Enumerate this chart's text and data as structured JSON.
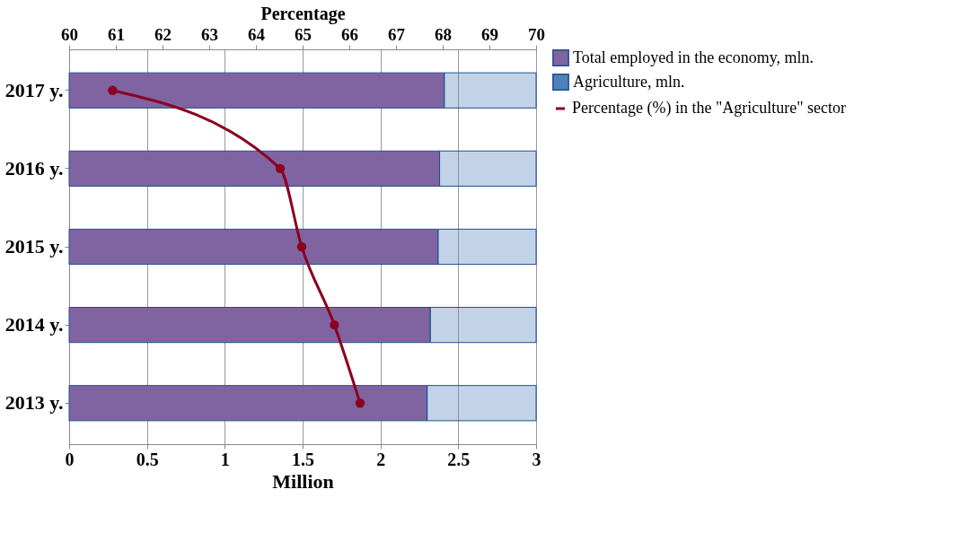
{
  "chart_data": {
    "type": "bar",
    "orientation": "horizontal",
    "stacked": true,
    "categories": [
      "2017 y.",
      "2016 y.",
      "2015 y.",
      "2014 y.",
      "2013 y."
    ],
    "series": [
      {
        "name": "Total employed in the economy, mln.",
        "color": "#8064a2",
        "values": [
          2.41,
          2.38,
          2.37,
          2.32,
          2.3
        ]
      },
      {
        "name": "Agriculture, mln.",
        "color": "#4f81bd",
        "values": [
          0.59,
          0.62,
          0.63,
          0.68,
          0.7
        ]
      },
      {
        "name": "Percentage (%) in the \"Agriculture\" sector",
        "type": "line",
        "axis": "x2",
        "color": "#8b0020",
        "marker": "circle",
        "values": [
          60.93,
          64.52,
          64.98,
          65.68,
          66.23
        ]
      }
    ],
    "xlabel": "Million",
    "xlim": [
      0,
      3
    ],
    "xticks": [
      0,
      0.5,
      1,
      1.5,
      2,
      2.5,
      3
    ],
    "x2label": "Percentage",
    "x2lim": [
      60,
      70
    ],
    "x2ticks": [
      60,
      61,
      62,
      63,
      64,
      65,
      66,
      67,
      68,
      69,
      70
    ],
    "grid": "x",
    "legend": "right"
  }
}
